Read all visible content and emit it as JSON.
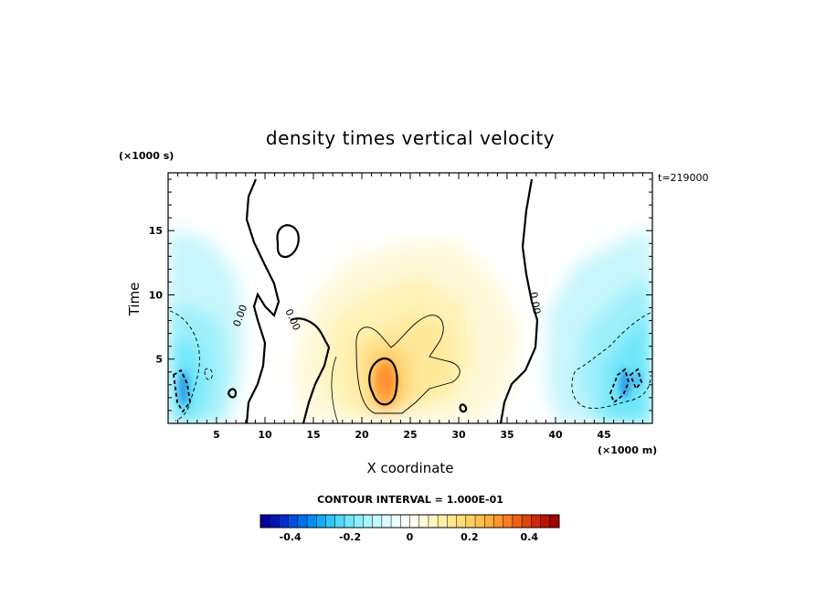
{
  "chart_data": {
    "type": "heatmap",
    "title": "density times vertical velocity",
    "xlabel": "X coordinate",
    "ylabel": "Time",
    "x_unit": "(×1000 m)",
    "y_unit": "(×1000 s)",
    "time_label": "t=219000",
    "xlim": [
      0,
      50
    ],
    "ylim": [
      0,
      19.5
    ],
    "x_ticks": [
      5,
      10,
      15,
      20,
      25,
      30,
      35,
      40,
      45
    ],
    "y_ticks": [
      5,
      10,
      15
    ],
    "contour_labels": [
      "0.00",
      "0.00",
      "0.00"
    ],
    "contour_interval_text": "CONTOUR INTERVAL = 1.000E-01",
    "colorbar": {
      "range": [
        -0.5,
        0.5
      ],
      "ticks": [
        -0.4,
        -0.2,
        0,
        0.2,
        0.4
      ],
      "tick_labels": [
        "-0.4",
        "-0.2",
        "0",
        "0.2",
        "0.4"
      ],
      "colors": [
        "#00009c",
        "#0014b4",
        "#0030cc",
        "#0050e0",
        "#0070ec",
        "#0090f4",
        "#10acf8",
        "#30c4fa",
        "#50d8fc",
        "#70e6fd",
        "#8eeefd",
        "#aaf4fe",
        "#c4f8fe",
        "#dafbff",
        "#ecfdff",
        "#f8feff",
        "#fffff2",
        "#fffbd8",
        "#fff6c0",
        "#fff0a6",
        "#ffe88e",
        "#ffde78",
        "#ffd060",
        "#ffc04c",
        "#ffac3a",
        "#ff962c",
        "#fc7c20",
        "#f06014",
        "#e0440c",
        "#cc2a06",
        "#b81402",
        "#a00000"
      ]
    }
  }
}
